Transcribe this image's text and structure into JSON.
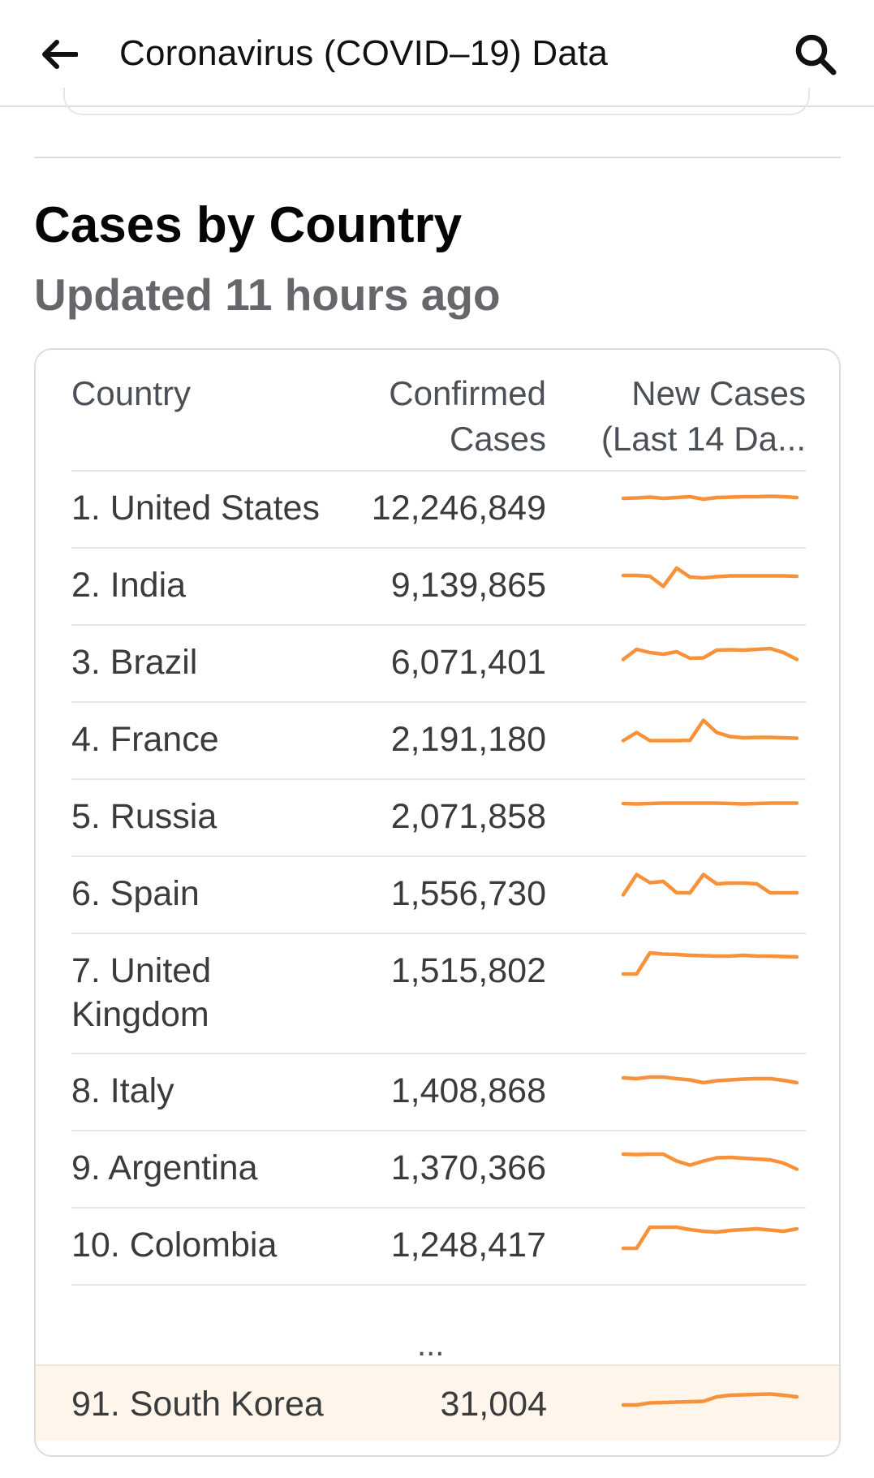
{
  "header": {
    "title": "Coronavirus (COVID–19) Data",
    "back_icon": "arrow-left-icon",
    "search_icon": "search-icon"
  },
  "section": {
    "title": "Cases by Country",
    "subtitle": "Updated 11 hours ago"
  },
  "table": {
    "columns": {
      "country": "Country",
      "confirmed_line1": "Confirmed",
      "confirmed_line2": "Cases",
      "new_line1": "New Cases",
      "new_line2": "(Last 14 Da..."
    },
    "rows": [
      {
        "country": "1. United States",
        "cases": "12,246,849",
        "trend": [
          62,
          63,
          65,
          62,
          64,
          66,
          60,
          64,
          65,
          66,
          66,
          67,
          66,
          64
        ]
      },
      {
        "country": "2. India",
        "cases": "9,139,865",
        "trend": [
          62,
          62,
          60,
          35,
          80,
          58,
          56,
          59,
          61,
          61,
          61,
          61,
          61,
          60
        ]
      },
      {
        "country": "3. Brazil",
        "cases": "6,071,401",
        "trend": [
          45,
          70,
          62,
          58,
          64,
          48,
          49,
          68,
          69,
          68,
          70,
          72,
          62,
          45
        ]
      },
      {
        "country": "4. France",
        "cases": "2,191,180",
        "trend": [
          35,
          55,
          35,
          35,
          35,
          36,
          85,
          55,
          45,
          42,
          43,
          43,
          42,
          41
        ]
      },
      {
        "country": "5. Russia",
        "cases": "2,071,858",
        "trend": [
          70,
          69,
          70,
          71,
          71,
          71,
          71,
          71,
          70,
          69,
          70,
          71,
          71,
          71
        ]
      },
      {
        "country": "6. Spain",
        "cases": "1,556,730",
        "trend": [
          35,
          85,
          65,
          68,
          40,
          40,
          85,
          62,
          64,
          64,
          62,
          40,
          40,
          40
        ]
      },
      {
        "country": "7. United Kingdom",
        "cases": "1,515,802",
        "trend": [
          30,
          30,
          82,
          79,
          78,
          76,
          75,
          74,
          74,
          76,
          74,
          74,
          73,
          72
        ]
      },
      {
        "country": "8. Italy",
        "cases": "1,408,868",
        "trend": [
          70,
          68,
          72,
          72,
          68,
          65,
          58,
          63,
          65,
          67,
          68,
          68,
          64,
          58
        ]
      },
      {
        "country": "9. Argentina",
        "cases": "1,370,366",
        "trend": [
          72,
          71,
          72,
          72,
          55,
          45,
          55,
          63,
          64,
          62,
          60,
          58,
          50,
          35
        ]
      },
      {
        "country": "10. Colombia",
        "cases": "1,248,417",
        "trend": [
          30,
          30,
          82,
          82,
          82,
          76,
          72,
          70,
          74,
          76,
          78,
          75,
          72,
          78
        ]
      }
    ],
    "ellipsis": "...",
    "highlight": {
      "country": "91. South Korea",
      "cases": "31,004",
      "trend": [
        40,
        40,
        45,
        46,
        47,
        48,
        49,
        60,
        64,
        65,
        66,
        67,
        64,
        60
      ]
    }
  },
  "colors": {
    "accent": "#f7923a",
    "highlight_bg": "#fff5eb",
    "divider": "#e4e6eb",
    "subtitle": "#65676b"
  }
}
